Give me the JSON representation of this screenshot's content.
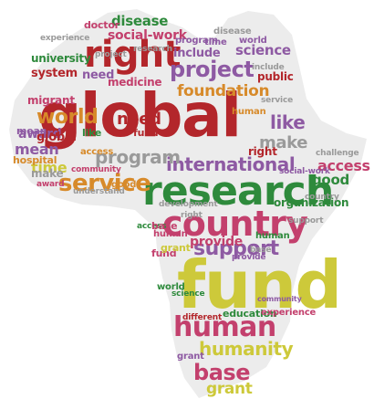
{
  "colors": {
    "red": "#b3262b",
    "green": "#2e8a3c",
    "yellow": "#cdc93a",
    "purple": "#8e5aa3",
    "pink": "#c3406d",
    "orange": "#d78a2a",
    "grey": "#9a9a9a",
    "silhouette": "#ececec"
  },
  "words": [
    {
      "text": "global",
      "color": "red"
    },
    {
      "text": "research",
      "color": "green"
    },
    {
      "text": "fund",
      "color": "yellow"
    },
    {
      "text": "country",
      "color": "pink"
    },
    {
      "text": "right",
      "color": "red"
    },
    {
      "text": "human",
      "color": "pink"
    },
    {
      "text": "service",
      "color": "orange"
    },
    {
      "text": "support",
      "color": "purple"
    },
    {
      "text": "project",
      "color": "purple"
    },
    {
      "text": "world",
      "color": "orange"
    },
    {
      "text": "international",
      "color": "purple"
    },
    {
      "text": "base",
      "color": "pink"
    },
    {
      "text": "humanity",
      "color": "yellow"
    },
    {
      "text": "program",
      "color": "grey"
    },
    {
      "text": "foundation",
      "color": "orange"
    },
    {
      "text": "need",
      "color": "red"
    },
    {
      "text": "access",
      "color": "pink"
    },
    {
      "text": "make",
      "color": "grey"
    },
    {
      "text": "like",
      "color": "purple"
    },
    {
      "text": "grant",
      "color": "yellow"
    },
    {
      "text": "disease",
      "color": "green"
    },
    {
      "text": "social-work",
      "color": "pink"
    },
    {
      "text": "science",
      "color": "purple"
    },
    {
      "text": "time",
      "color": "yellow"
    },
    {
      "text": "good",
      "color": "green"
    },
    {
      "text": "mean",
      "color": "purple"
    },
    {
      "text": "award",
      "color": "purple"
    },
    {
      "text": "provide",
      "color": "pink"
    },
    {
      "text": "public",
      "color": "red"
    },
    {
      "text": "system",
      "color": "red"
    },
    {
      "text": "university",
      "color": "green"
    },
    {
      "text": "migrant",
      "color": "pink"
    },
    {
      "text": "medicine",
      "color": "pink"
    },
    {
      "text": "include",
      "color": "purple"
    },
    {
      "text": "hospital",
      "color": "orange"
    },
    {
      "text": "education",
      "color": "green"
    },
    {
      "text": "organization",
      "color": "green"
    },
    {
      "text": "doctor",
      "color": "pink"
    },
    {
      "text": "community",
      "color": "pink"
    },
    {
      "text": "understand",
      "color": "grey"
    },
    {
      "text": "development",
      "color": "grey"
    },
    {
      "text": "challenge",
      "color": "grey"
    },
    {
      "text": "experience",
      "color": "pink"
    },
    {
      "text": "different",
      "color": "red"
    },
    {
      "text": "fund",
      "color": "pink"
    },
    {
      "text": "access",
      "color": "green"
    },
    {
      "text": "global",
      "color": "red"
    },
    {
      "text": "fund",
      "color": "red"
    },
    {
      "text": "right",
      "color": "red"
    },
    {
      "text": "grant",
      "color": "yellow"
    },
    {
      "text": "world",
      "color": "green"
    },
    {
      "text": "base",
      "color": "pink"
    },
    {
      "text": "human",
      "color": "pink"
    },
    {
      "text": "mean",
      "color": "purple"
    },
    {
      "text": "like",
      "color": "green"
    },
    {
      "text": "science",
      "color": "green"
    },
    {
      "text": "social-work",
      "color": "purple"
    },
    {
      "text": "need",
      "color": "purple"
    },
    {
      "text": "disease",
      "color": "grey"
    },
    {
      "text": "country",
      "color": "grey"
    },
    {
      "text": "service",
      "color": "grey"
    },
    {
      "text": "time",
      "color": "purple"
    },
    {
      "text": "program",
      "color": "purple"
    },
    {
      "text": "make",
      "color": "grey"
    },
    {
      "text": "award",
      "color": "pink"
    },
    {
      "text": "access",
      "color": "orange"
    },
    {
      "text": "right",
      "color": "grey"
    },
    {
      "text": "good",
      "color": "orange"
    },
    {
      "text": "human",
      "color": "green"
    },
    {
      "text": "provide",
      "color": "purple"
    },
    {
      "text": "community",
      "color": "purple"
    },
    {
      "text": "experience",
      "color": "grey"
    },
    {
      "text": "base",
      "color": "grey"
    },
    {
      "text": "world",
      "color": "purple"
    },
    {
      "text": "support",
      "color": "grey"
    },
    {
      "text": "grant",
      "color": "purple"
    },
    {
      "text": "research",
      "color": "grey"
    },
    {
      "text": "human",
      "color": "orange"
    },
    {
      "text": "project",
      "color": "grey"
    },
    {
      "text": "include",
      "color": "grey"
    }
  ]
}
